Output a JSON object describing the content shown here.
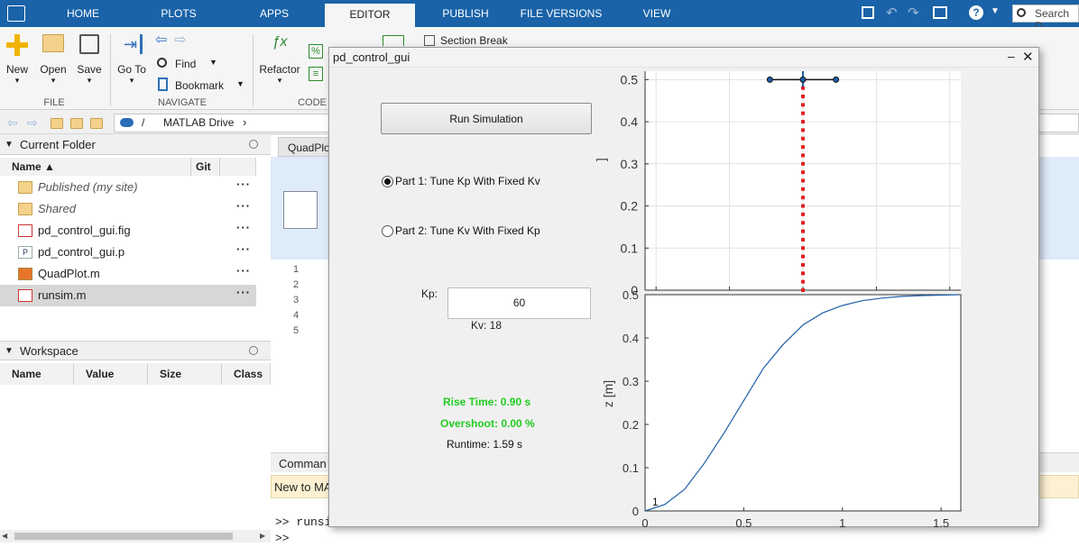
{
  "tabs": [
    "HOME",
    "PLOTS",
    "APPS",
    "EDITOR",
    "PUBLISH",
    "FILE VERSIONS",
    "VIEW"
  ],
  "search_placeholder": "Search D",
  "toolstrip": {
    "new": "New",
    "open": "Open",
    "save": "Save",
    "goto": "Go To",
    "find": "Find",
    "bookmark": "Bookmark",
    "refactor": "Refactor",
    "section_break": "Section Break",
    "groups": {
      "file": "FILE",
      "navigate": "NAVIGATE",
      "code": "CODE"
    }
  },
  "address": {
    "sep": "/",
    "drive": "MATLAB Drive",
    "arrow": "›"
  },
  "current_folder": {
    "title": "Current Folder",
    "col_name": "Name ▲",
    "col_git": "Git",
    "files": [
      {
        "name": "Published",
        "suffix": "(my site)",
        "type": "folder"
      },
      {
        "name": "Shared",
        "suffix": "",
        "type": "folder"
      },
      {
        "name": "pd_control_gui.fig",
        "suffix": "",
        "type": "fig"
      },
      {
        "name": "pd_control_gui.p",
        "suffix": "",
        "type": "p"
      },
      {
        "name": "QuadPlot.m",
        "suffix": "",
        "type": "m"
      },
      {
        "name": "runsim.m",
        "suffix": "",
        "type": "m"
      }
    ],
    "more": "···"
  },
  "workspace": {
    "title": "Workspace",
    "cols": [
      "Name",
      "Value",
      "Size",
      "Class"
    ]
  },
  "editor": {
    "tab": "QuadPlo",
    "line_numbers": [
      "1",
      "2",
      "3",
      "4",
      "5"
    ]
  },
  "command": {
    "title": "Comman",
    "notice": "New to MA",
    "line1": ">> runsi",
    "line2": ">>"
  },
  "figure": {
    "title": "pd_control_gui",
    "run_button": "Run Simulation",
    "part1": "Part 1: Tune Kp With Fixed Kv",
    "part2": "Part 2: Tune Kv With Fixed Kp",
    "kp_label": "Kp:",
    "kp_value": "60",
    "kv_text": "Kv: 18",
    "rise_time": "Rise Time:  0.90 s",
    "overshoot": "Overshoot:  0.00 %",
    "runtime": "Runtime:  1.59 s",
    "colors": {
      "good": "#22cc22",
      "trace": "#e02020",
      "line": "#1f5fa8"
    }
  },
  "chart_data": [
    {
      "type": "scatter",
      "title": "",
      "xlabel": "",
      "ylabel": "]",
      "xlim": [
        -0.43,
        0.43
      ],
      "ylim": [
        0,
        0.52
      ],
      "xticks": [
        "-0.4",
        "-0.2",
        "0",
        "0.2",
        "0.4"
      ],
      "yticks": [
        "0",
        "0.1",
        "0.2",
        "0.3",
        "0.4",
        "0.5"
      ],
      "grid": true,
      "quad_position": {
        "x": 0,
        "z": 0.5
      },
      "rotor_arm_half_width": 0.09,
      "trace_x": 0,
      "trace_z": [
        0,
        0.02,
        0.04,
        0.06,
        0.08,
        0.1,
        0.12,
        0.14,
        0.16,
        0.18,
        0.2,
        0.22,
        0.24,
        0.26,
        0.28,
        0.3,
        0.32,
        0.34,
        0.36,
        0.38,
        0.4,
        0.42,
        0.44,
        0.46,
        0.48,
        0.5
      ]
    },
    {
      "type": "line",
      "title": "",
      "xlabel": "t [s]",
      "ylabel": "z [m]",
      "xlim": [
        0,
        1.6
      ],
      "ylim": [
        0,
        0.5
      ],
      "xticks": [
        "0",
        "0.5",
        "1",
        "1.5"
      ],
      "yticks": [
        "0",
        "0.1",
        "0.2",
        "0.3",
        "0.4",
        "0.5"
      ],
      "grid": false,
      "annotation": "1",
      "series": [
        {
          "x": [
            0,
            0.1,
            0.2,
            0.3,
            0.4,
            0.5,
            0.6,
            0.7,
            0.8,
            0.9,
            1.0,
            1.1,
            1.2,
            1.3,
            1.4,
            1.5,
            1.59
          ],
          "values": [
            0,
            0.015,
            0.05,
            0.11,
            0.18,
            0.255,
            0.33,
            0.385,
            0.43,
            0.458,
            0.475,
            0.486,
            0.492,
            0.496,
            0.498,
            0.499,
            0.5
          ]
        }
      ]
    }
  ]
}
